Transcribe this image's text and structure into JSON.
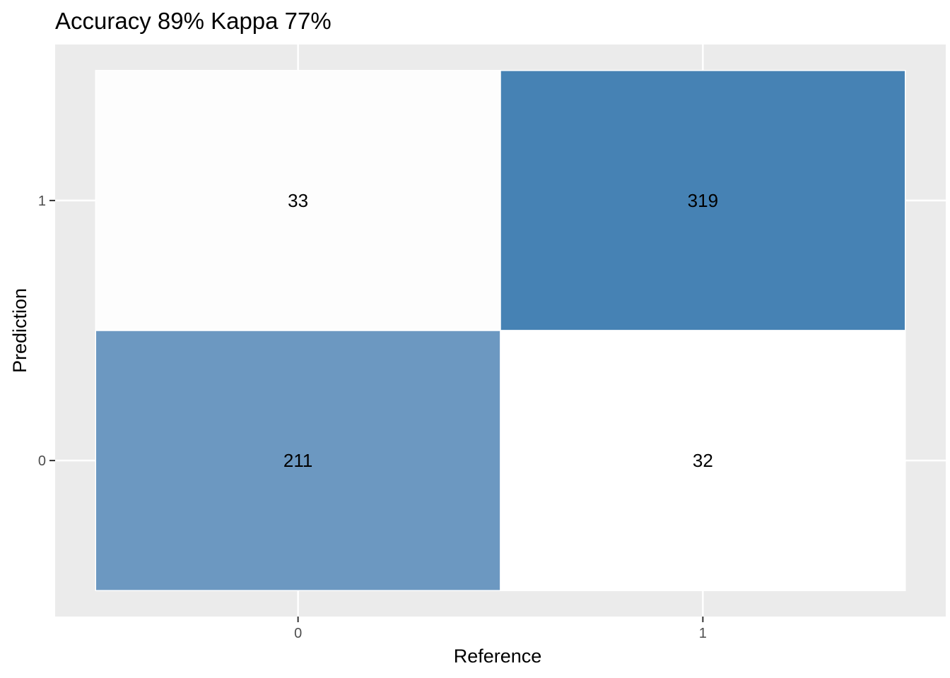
{
  "chart_data": {
    "type": "heatmap",
    "title": "Accuracy 89% Kappa 77%",
    "xlabel": "Reference",
    "ylabel": "Prediction",
    "x_categories": [
      "0",
      "1"
    ],
    "y_categories": [
      "0",
      "1"
    ],
    "cells": [
      {
        "reference": "0",
        "prediction": "1",
        "value": 33,
        "fill": "#fdfdfd"
      },
      {
        "reference": "1",
        "prediction": "1",
        "value": 319,
        "fill": "#4682b4"
      },
      {
        "reference": "0",
        "prediction": "0",
        "value": 211,
        "fill": "#6c98c1"
      },
      {
        "reference": "1",
        "prediction": "0",
        "value": 32,
        "fill": "#ffffff"
      }
    ],
    "panel_background": "#ebebeb",
    "grid": true,
    "legend": "none"
  }
}
